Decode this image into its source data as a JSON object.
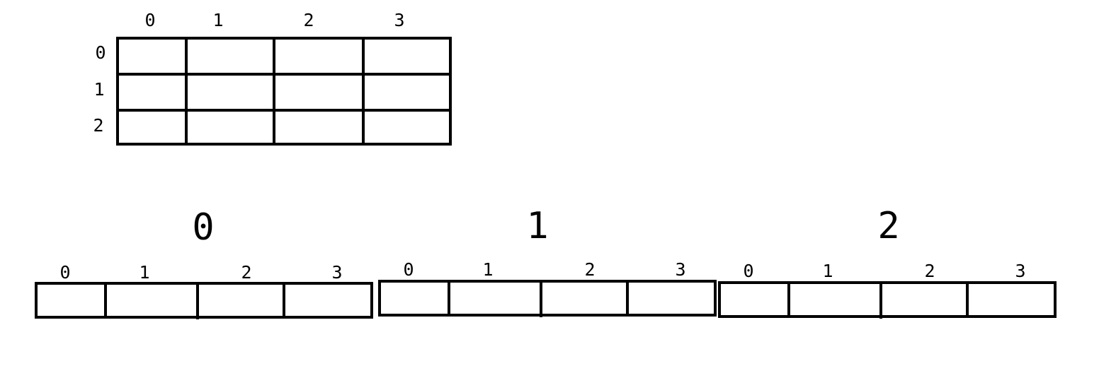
{
  "matrix": {
    "row_labels": [
      "0",
      "1",
      "2"
    ],
    "col_labels": [
      "0",
      "1",
      "2",
      "3"
    ]
  },
  "rows": [
    {
      "title": "0",
      "col_labels": [
        "0",
        "1",
        "2",
        "3"
      ]
    },
    {
      "title": "1",
      "col_labels": [
        "0",
        "1",
        "2",
        "3"
      ]
    },
    {
      "title": "2",
      "col_labels": [
        "0",
        "1",
        "2",
        "3"
      ]
    }
  ]
}
